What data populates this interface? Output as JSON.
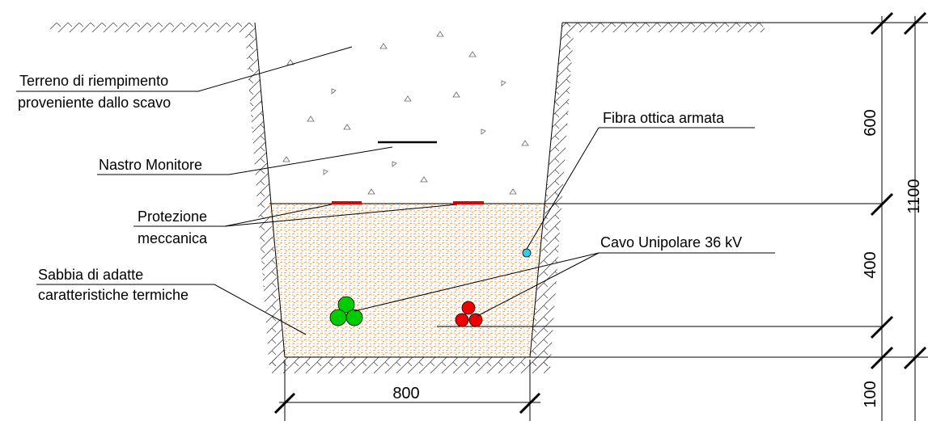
{
  "labels": {
    "backfill_line1": "Terreno di riempimento",
    "backfill_line2": "proveniente dallo scavo",
    "warning_tape": "Nastro Monitore",
    "protection_line1": "Protezione",
    "protection_line2": "meccanica",
    "sand_line1": "Sabbia di adatte",
    "sand_line2": "caratteristiche termiche",
    "fiber": "Fibra ottica armata",
    "cable": "Cavo Unipolare 36 kV"
  },
  "dimensions": {
    "backfill_depth": "600",
    "sand_depth": "400",
    "total_depth": "1100",
    "bedding": "100",
    "trench_width": "800"
  },
  "colors": {
    "sand": "#f0a050",
    "cable_green": "#00cc00",
    "cable_red": "#ee0000",
    "fiber": "#33ccee",
    "protection": "#dd0000"
  }
}
